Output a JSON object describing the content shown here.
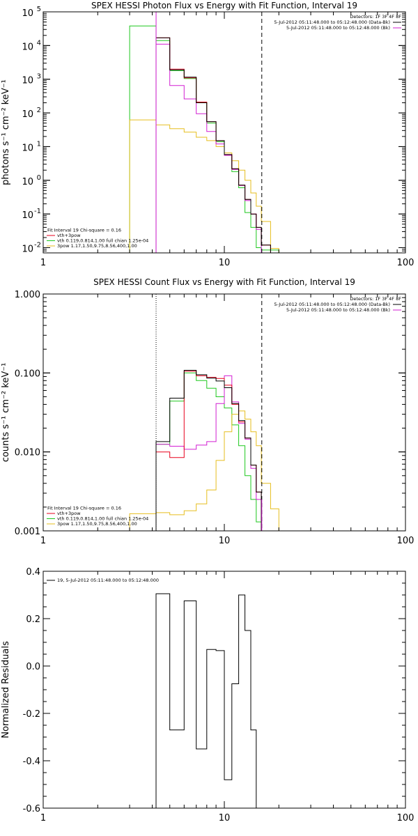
{
  "colors": {
    "black": "#000000",
    "red": "#e8001c",
    "green": "#1ec81e",
    "magenta": "#d21ed2",
    "orange": "#e6be1e"
  },
  "chart_data": [
    {
      "type": "line",
      "title": "SPEX HESSI Photon Flux vs Energy with Fit Function, Interval 19",
      "ylabel": "photons s⁻¹ cm⁻² keV⁻¹",
      "xlabel": "",
      "xscale": "log",
      "yscale": "log",
      "xlim": [
        1,
        100
      ],
      "ylim": [
        0.007,
        100000
      ],
      "xticks": [
        "1",
        "10",
        "100"
      ],
      "yticks": [
        {
          "value": 0.01,
          "base": "10",
          "exp": "-2"
        },
        {
          "value": 0.1,
          "base": "10",
          "exp": "-1"
        },
        {
          "value": 1,
          "base": "10",
          "exp": "0"
        },
        {
          "value": 10,
          "base": "10",
          "exp": "1"
        },
        {
          "value": 100,
          "base": "10",
          "exp": "2"
        },
        {
          "value": 1000,
          "base": "10",
          "exp": "3"
        },
        {
          "value": 10000,
          "base": "10",
          "exp": "4"
        },
        {
          "value": 100000,
          "base": "10",
          "exp": "5"
        }
      ],
      "vlines": [
        {
          "x": 4.2,
          "style": "solid",
          "color": "magenta"
        },
        {
          "x": 16.1,
          "style": "dashed",
          "color": "black"
        }
      ],
      "legend_right": [
        {
          "text": "Detectors: 1F 3F 4F 8F",
          "color": "",
          "line": false
        },
        {
          "text": "5-Jul-2012 05:11:48.000 to 05:12:48.000 (Data-Bk)",
          "color": "black",
          "line": true
        },
        {
          "text": "5-Jul-2012 05:11:48.000 to 05:12:48.000 (Bk)",
          "color": "magenta",
          "line": true
        }
      ],
      "legend_left": [
        {
          "text": "Fit Interval 19   Chi-square = 0.16",
          "color": "",
          "line": false
        },
        {
          "text": "vth+3pow",
          "color": "red",
          "line": true
        },
        {
          "text": "vth 0.119,0.814,1.00  full chian 1.25e-04",
          "color": "green",
          "line": true
        },
        {
          "text": "3pow 1.17,1.50,9.75,8.56,400,1.00",
          "color": "orange",
          "line": true
        }
      ],
      "edges": [
        3,
        4.2,
        5,
        6,
        7,
        8,
        9,
        10,
        11,
        12,
        13,
        14,
        15,
        16,
        18,
        20
      ],
      "series": [
        {
          "color": "green",
          "values": [
            38000,
            14000,
            1800,
            1050,
            200,
            50,
            14,
            5.5,
            1.8,
            0.6,
            0.11,
            0.04,
            0.01,
            0.0085,
            0.0085
          ]
        },
        {
          "color": "orange",
          "values": [
            62,
            44,
            34,
            27,
            19,
            15,
            10,
            6.5,
            3.8,
            2.0,
            1.0,
            0.42,
            0.17,
            0.06,
            0.0095
          ]
        },
        {
          "color": "magenta",
          "values": [
            null,
            11000,
            650,
            260,
            95,
            28,
            12,
            5.5,
            2.1,
            0.7,
            0.25,
            0.1,
            0.035,
            null,
            null
          ]
        },
        {
          "color": "red",
          "values": [
            null,
            17000,
            2000,
            1100,
            210,
            55,
            15,
            5.8,
            2.2,
            0.72,
            0.27,
            0.1,
            0.04,
            0.012,
            null
          ]
        },
        {
          "color": "black",
          "values": [
            null,
            17000,
            1900,
            1150,
            200,
            55,
            15,
            5.8,
            2.2,
            0.72,
            0.27,
            0.1,
            0.04,
            0.012,
            null
          ]
        }
      ]
    },
    {
      "type": "line",
      "title": "SPEX HESSI Count Flux vs Energy with Fit Function, Interval 19",
      "ylabel": "counts s⁻¹ cm⁻² keV⁻¹",
      "xlabel": "",
      "xscale": "log",
      "yscale": "log",
      "xlim": [
        1,
        100
      ],
      "ylim": [
        0.001,
        1.0
      ],
      "xticks": [
        "1",
        "10",
        "100"
      ],
      "yticks": [
        {
          "value": 0.001,
          "text": "0.001"
        },
        {
          "value": 0.01,
          "text": "0.010"
        },
        {
          "value": 0.1,
          "text": "0.100"
        },
        {
          "value": 1.0,
          "text": "1.000"
        }
      ],
      "vlines": [
        {
          "x": 4.2,
          "style": "dotted",
          "color": "black"
        },
        {
          "x": 16.1,
          "style": "dashed",
          "color": "black"
        },
        {
          "x": 16.1,
          "style": "solid",
          "color": "magenta",
          "from": 0.001,
          "to": 0.0025
        }
      ],
      "legend_right": [
        {
          "text": "Detectors: 1F 3F 4F 8F",
          "color": "",
          "line": false
        },
        {
          "text": "5-Jul-2012 05:11:48.000 to 05:12:48.000 (Data-Bk)",
          "color": "black",
          "line": true
        },
        {
          "text": "5-Jul-2012 05:11:48.000 to 05:12:48.000 (Bk)",
          "color": "magenta",
          "line": true
        }
      ],
      "legend_left": [
        {
          "text": "Fit Interval 19   Chi-square = 0.16",
          "color": "",
          "line": false
        },
        {
          "text": "vth+3pow",
          "color": "red",
          "line": true
        },
        {
          "text": "vth 0.119,0.814,1.00  full chian 1.25e-04",
          "color": "green",
          "line": true
        },
        {
          "text": "3pow 1.17,1.50,9.75,8.56,400,1.00",
          "color": "orange",
          "line": true
        }
      ],
      "edges": [
        3,
        4.2,
        5,
        6,
        7,
        8,
        9,
        10,
        11,
        12,
        13,
        14,
        15,
        16,
        18,
        20
      ],
      "series": [
        {
          "color": "green",
          "values": [
            null,
            0.0125,
            0.044,
            0.1,
            0.08,
            0.064,
            0.05,
            0.036,
            0.022,
            0.012,
            0.005,
            0.0025,
            0.0013,
            0.001,
            null
          ]
        },
        {
          "color": "orange",
          "values": [
            0.00165,
            0.0017,
            0.0016,
            0.0018,
            0.0022,
            0.0033,
            0.0078,
            0.018,
            0.03,
            0.033,
            0.026,
            0.018,
            0.012,
            0.004,
            0.0019
          ]
        },
        {
          "color": "magenta",
          "values": [
            null,
            0.0125,
            0.0118,
            0.0108,
            0.0122,
            0.0135,
            0.041,
            0.092,
            0.043,
            0.023,
            0.0145,
            0.0062,
            0.0025,
            null,
            null
          ]
        },
        {
          "color": "red",
          "values": [
            null,
            0.01,
            0.0085,
            0.105,
            0.092,
            0.088,
            0.085,
            0.07,
            0.04,
            0.024,
            0.015,
            0.0068,
            0.0031,
            null,
            null
          ]
        },
        {
          "color": "black",
          "values": [
            null,
            0.0135,
            0.048,
            0.108,
            0.095,
            0.086,
            0.079,
            0.065,
            0.041,
            0.025,
            0.015,
            0.0068,
            0.0031,
            null,
            null
          ]
        }
      ]
    },
    {
      "type": "line",
      "title": "",
      "ylabel": "Normalized Residuals",
      "xlabel": "",
      "xscale": "log",
      "yscale": "linear",
      "xlim": [
        1,
        100
      ],
      "ylim": [
        -0.6,
        0.4
      ],
      "xticks": [
        "1",
        "10",
        "100"
      ],
      "yticks": [
        {
          "value": -0.6,
          "text": "-0.6"
        },
        {
          "value": -0.4,
          "text": "-0.4"
        },
        {
          "value": -0.2,
          "text": "-0.2"
        },
        {
          "value": 0.0,
          "text": "0.0"
        },
        {
          "value": 0.2,
          "text": "0.2"
        },
        {
          "value": 0.4,
          "text": "0.4"
        }
      ],
      "vlines": [],
      "legend_right": [],
      "legend_left": [
        {
          "text": "19,  5-Jul-2012 05:11:48.000 to 05:12:48.000",
          "color": "black",
          "line": true
        }
      ],
      "edges": [
        4.2,
        5,
        6,
        7,
        8,
        9,
        10,
        11,
        12,
        13,
        14,
        15,
        16
      ],
      "series": [
        {
          "color": "black",
          "values": [
            0.305,
            -0.27,
            0.275,
            -0.35,
            0.07,
            0.065,
            -0.48,
            -0.075,
            0.3,
            0.15,
            -0.27,
            -0.6
          ]
        }
      ],
      "open_start_at_bottom": true
    }
  ]
}
